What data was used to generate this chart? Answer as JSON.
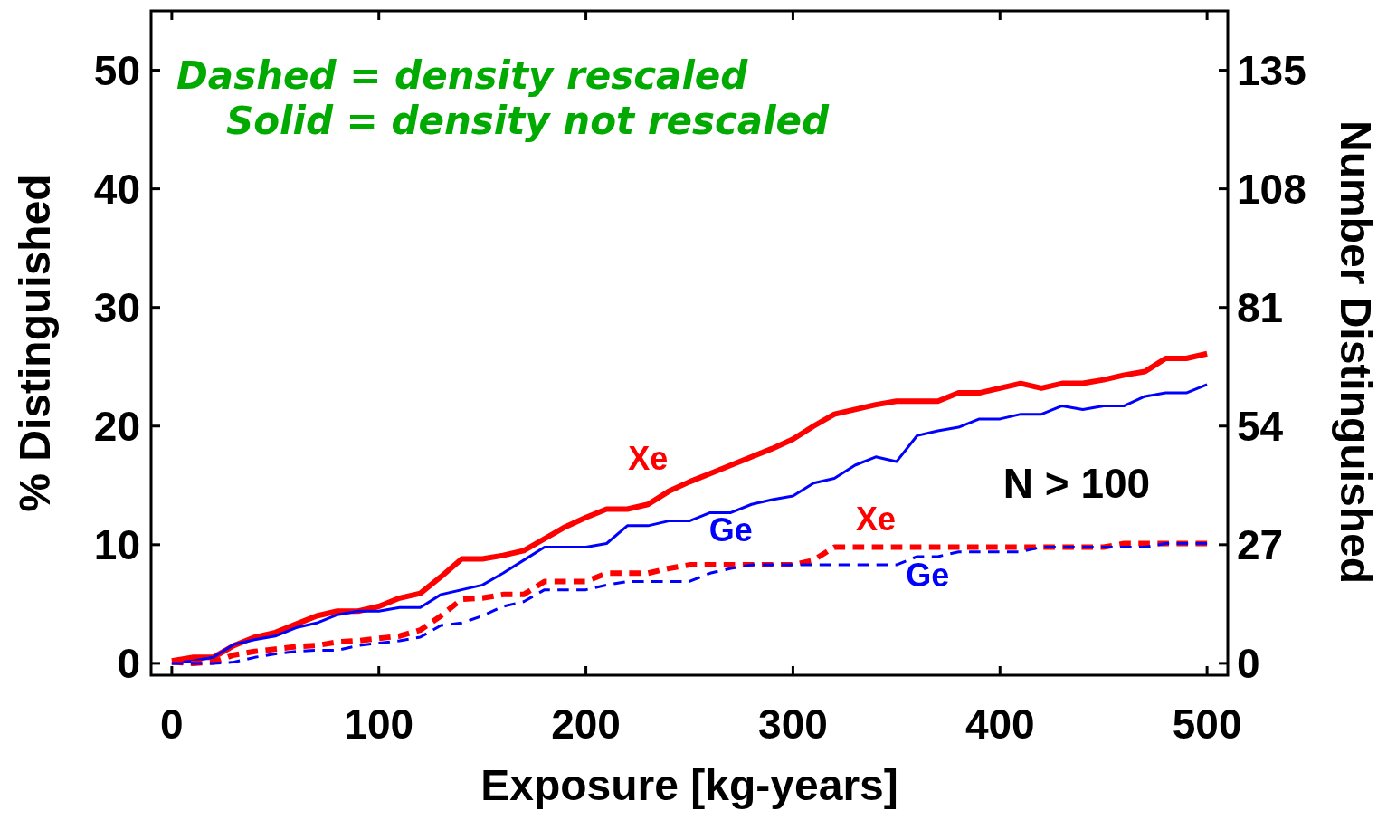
{
  "chart_data": {
    "type": "line",
    "xlabel": "Exposure [kg-years]",
    "ylabel": "% Distinguished",
    "y2label": "Number Distinguished",
    "annotations": [
      "Dashed = density rescaled",
      "Solid = density not rescaled",
      "N > 100"
    ],
    "x": [
      0,
      10,
      20,
      30,
      40,
      50,
      60,
      70,
      80,
      90,
      100,
      110,
      120,
      130,
      140,
      150,
      160,
      170,
      180,
      190,
      200,
      210,
      220,
      230,
      240,
      250,
      260,
      270,
      280,
      290,
      300,
      310,
      320,
      330,
      340,
      350,
      360,
      370,
      380,
      390,
      400,
      410,
      420,
      430,
      440,
      450,
      460,
      470,
      480,
      490,
      500
    ],
    "series": [
      {
        "name": "Xe",
        "color": "#ff0000",
        "line_style": "solid",
        "values": [
          0.2,
          0.5,
          0.5,
          1.5,
          2.2,
          2.6,
          3.3,
          4.0,
          4.4,
          4.4,
          4.8,
          5.5,
          5.9,
          7.3,
          8.8,
          8.8,
          9.1,
          9.5,
          10.5,
          11.5,
          12.3,
          13.0,
          13.0,
          13.4,
          14.5,
          15.3,
          16.0,
          16.7,
          17.4,
          18.1,
          18.9,
          20.0,
          21.0,
          21.4,
          21.8,
          22.1,
          22.1,
          22.1,
          22.8,
          22.8,
          23.2,
          23.6,
          23.2,
          23.6,
          23.6,
          23.9,
          24.3,
          24.6,
          25.7,
          25.7,
          26.1
        ]
      },
      {
        "name": "Ge",
        "color": "#0000ff",
        "line_style": "solid",
        "values": [
          0,
          0.2,
          0.5,
          1.6,
          2.0,
          2.3,
          3.0,
          3.4,
          4.1,
          4.4,
          4.4,
          4.7,
          4.7,
          5.8,
          6.2,
          6.6,
          7.6,
          8.7,
          9.8,
          9.8,
          9.8,
          10.1,
          11.6,
          11.6,
          12.0,
          12.0,
          12.7,
          12.7,
          13.4,
          13.8,
          14.1,
          15.2,
          15.6,
          16.7,
          17.4,
          17.0,
          19.2,
          19.6,
          19.9,
          20.6,
          20.6,
          21.0,
          21.0,
          21.7,
          21.4,
          21.7,
          21.7,
          22.5,
          22.8,
          22.8,
          23.5
        ]
      },
      {
        "name": "Xe",
        "color": "#ff0000",
        "line_style": "dashed",
        "values": [
          0.1,
          0,
          0.1,
          0.7,
          1.0,
          1.2,
          1.4,
          1.5,
          1.8,
          1.9,
          2.1,
          2.3,
          2.8,
          4.0,
          5.4,
          5.5,
          5.8,
          5.8,
          6.9,
          6.9,
          6.9,
          7.6,
          7.6,
          7.6,
          8.0,
          8.3,
          8.3,
          8.3,
          8.3,
          8.3,
          8.3,
          8.7,
          9.8,
          9.8,
          9.8,
          9.8,
          9.8,
          9.8,
          9.8,
          9.8,
          9.8,
          9.8,
          9.8,
          9.8,
          9.8,
          9.8,
          10.1,
          10.1,
          10.1,
          10.1,
          10.1
        ]
      },
      {
        "name": "Ge",
        "color": "#0000ff",
        "line_style": "dashed",
        "values": [
          0,
          0,
          0,
          0.1,
          0.5,
          0.8,
          1.0,
          1.1,
          1.1,
          1.5,
          1.7,
          1.9,
          2.2,
          3.2,
          3.4,
          4.0,
          4.8,
          5.2,
          6.2,
          6.2,
          6.2,
          6.6,
          6.9,
          6.9,
          6.9,
          6.9,
          7.6,
          8.0,
          8.3,
          8.3,
          8.3,
          8.3,
          8.3,
          8.3,
          8.3,
          8.3,
          9.0,
          9.0,
          9.4,
          9.4,
          9.4,
          9.4,
          9.8,
          9.8,
          9.8,
          9.8,
          9.8,
          9.8,
          10.1,
          10.1,
          10.1
        ]
      }
    ],
    "xlim": [
      -10,
      510
    ],
    "xticks": [
      0,
      100,
      200,
      300,
      400,
      500
    ],
    "ylim": [
      -1,
      55
    ],
    "yticks": [
      0,
      10,
      20,
      30,
      40,
      50
    ],
    "y2lim": [
      -2.7,
      148.5
    ],
    "y2ticks": [
      0,
      27,
      54,
      81,
      108,
      135
    ],
    "grid": false
  }
}
